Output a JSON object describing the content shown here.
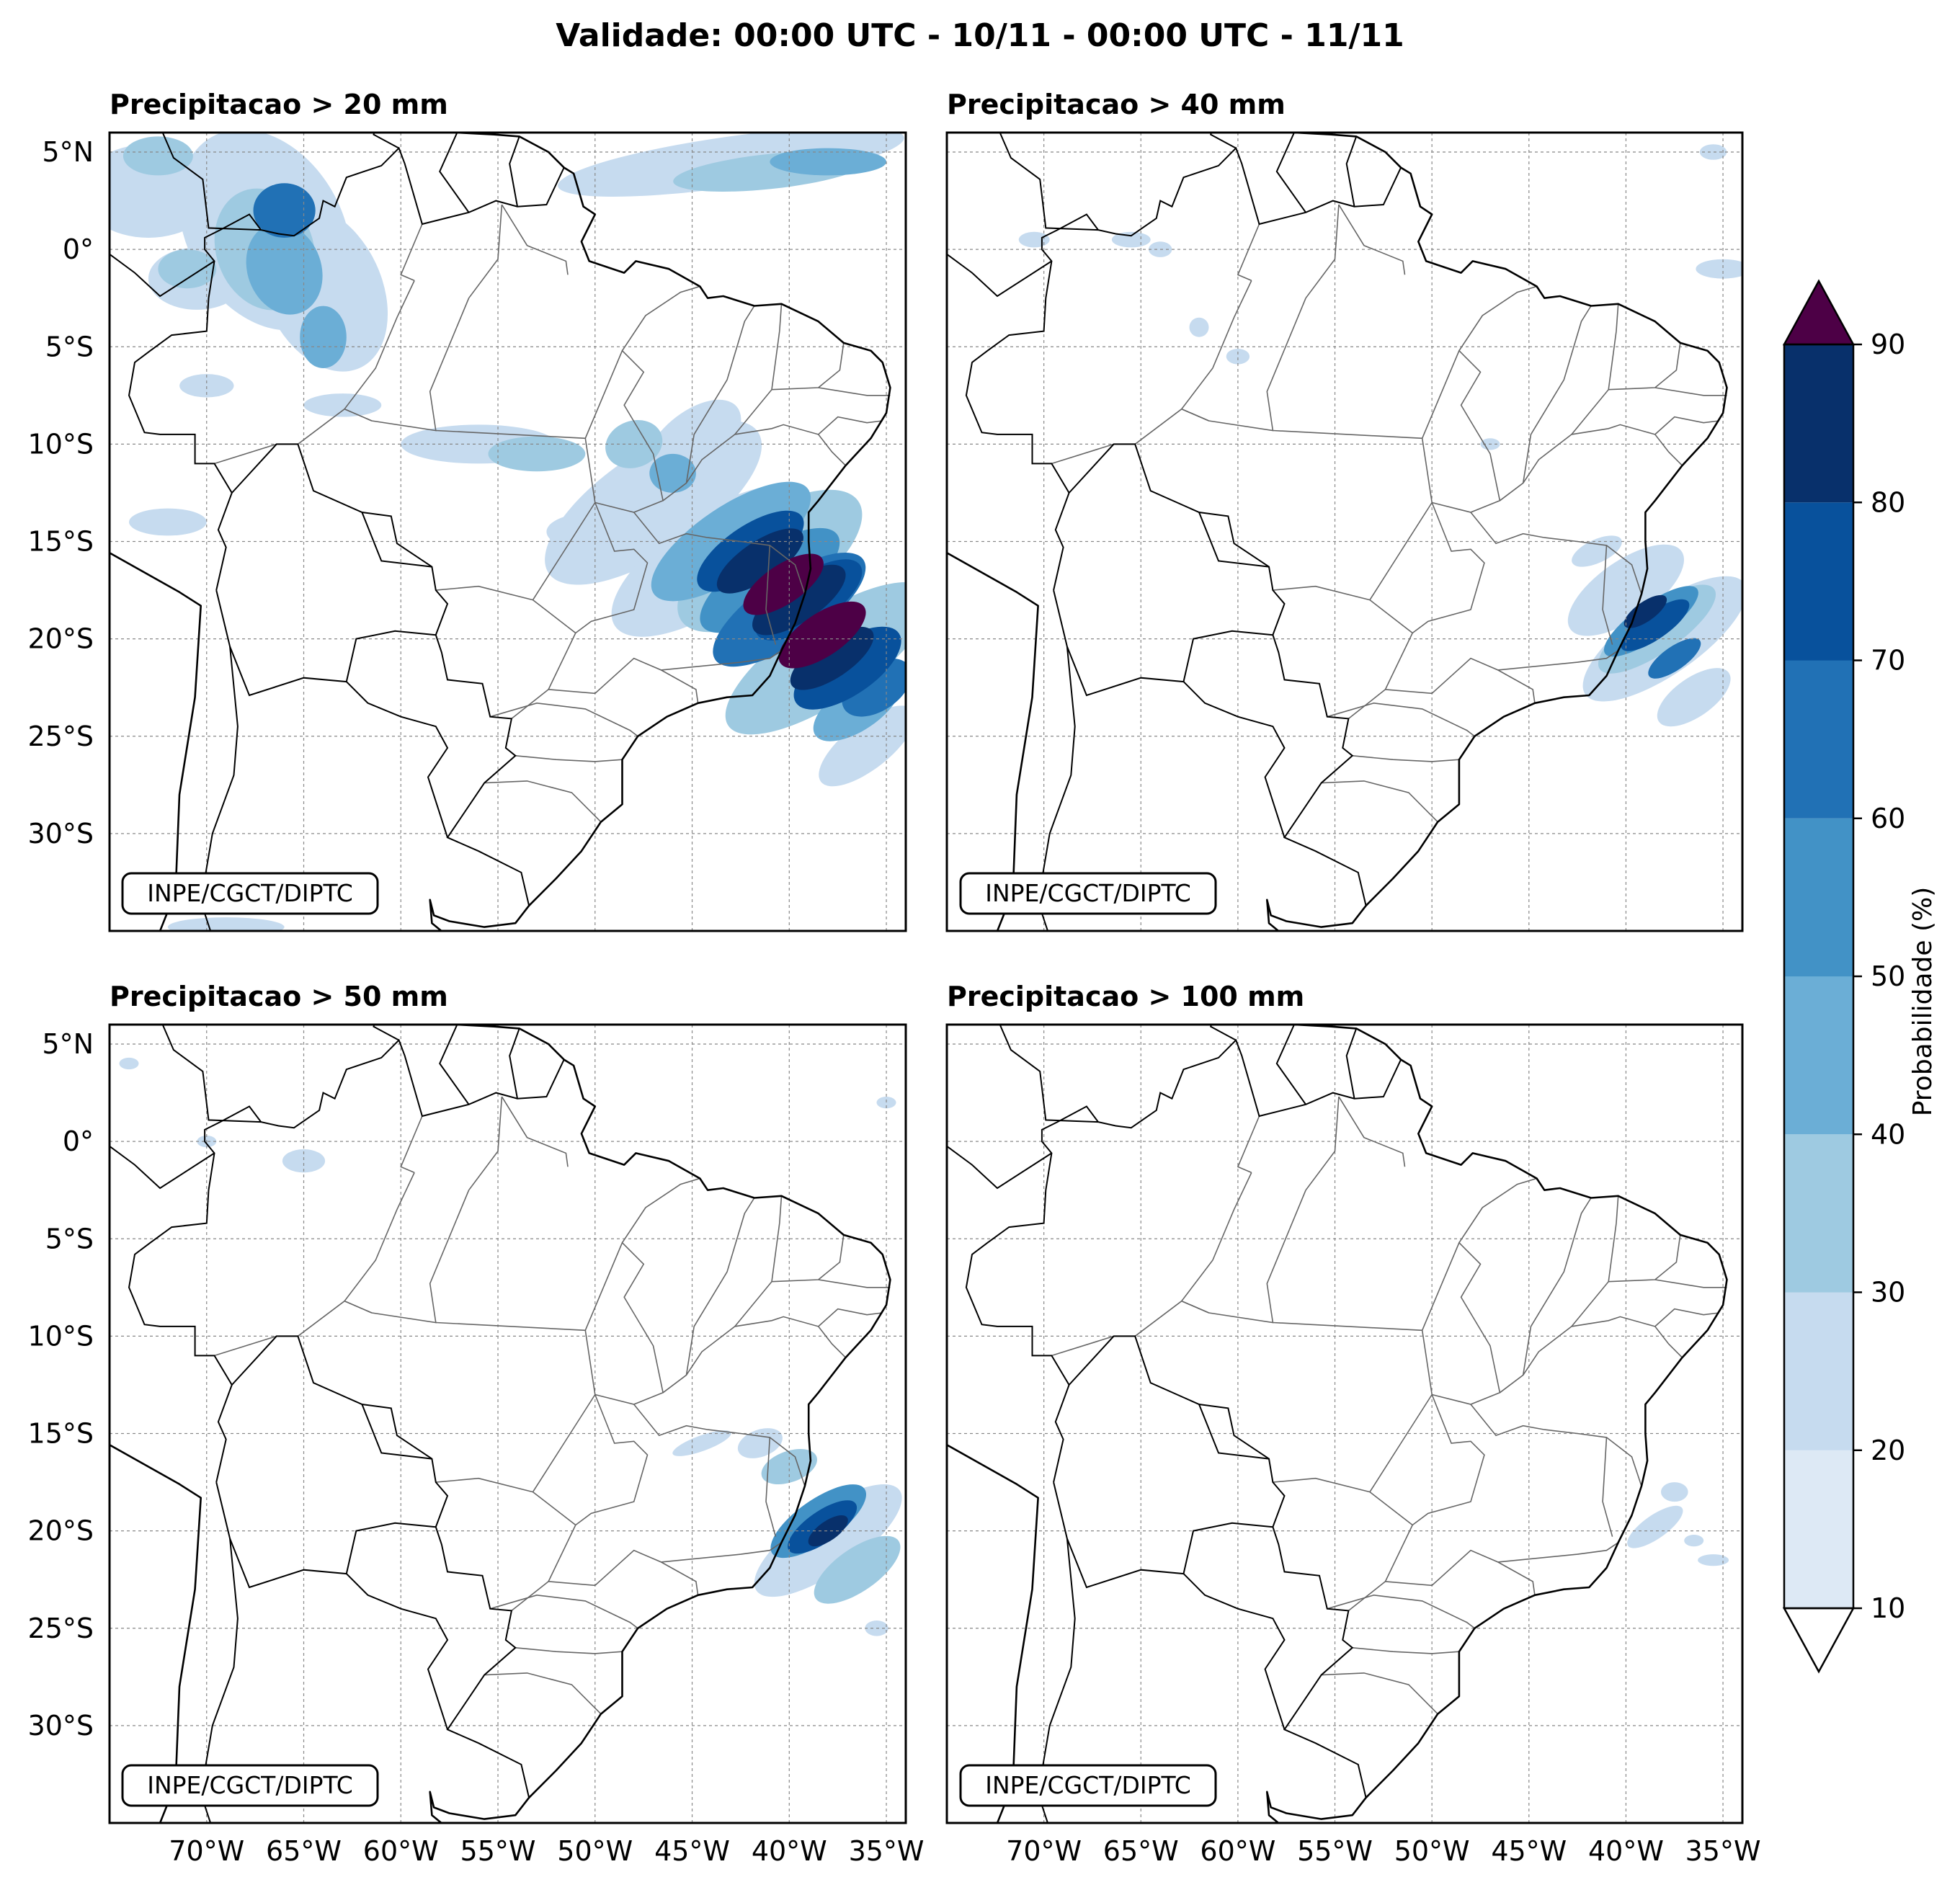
{
  "figure": {
    "title": "Validade: 00:00 UTC - 10/11 - 00:00 UTC - 11/11"
  },
  "panels": [
    {
      "title": "Precipitacao > 20 mm",
      "credit": "INPE/CGCT/DIPTC",
      "threshold_mm": 20
    },
    {
      "title": "Precipitacao > 40 mm",
      "credit": "INPE/CGCT/DIPTC",
      "threshold_mm": 40
    },
    {
      "title": "Precipitacao > 50 mm",
      "credit": "INPE/CGCT/DIPTC",
      "threshold_mm": 50
    },
    {
      "title": "Precipitacao > 100 mm",
      "credit": "INPE/CGCT/DIPTC",
      "threshold_mm": 100
    }
  ],
  "map": {
    "lon_range": [
      -75,
      -34
    ],
    "lat_range": [
      -35,
      6
    ],
    "lon_ticks": [
      -70,
      -65,
      -60,
      -55,
      -50,
      -45,
      -40,
      -35
    ],
    "lat_ticks": [
      5,
      0,
      -5,
      -10,
      -15,
      -20,
      -25,
      -30
    ],
    "lon_tick_labels": [
      "70°W",
      "65°W",
      "60°W",
      "55°W",
      "50°W",
      "45°W",
      "40°W",
      "35°W"
    ],
    "lat_tick_labels": [
      "5°N",
      "0°",
      "5°S",
      "10°S",
      "15°S",
      "20°S",
      "25°S",
      "30°S"
    ]
  },
  "colorbar": {
    "label": "Probabilidade (%)",
    "ticks": [
      10,
      20,
      30,
      40,
      50,
      60,
      70,
      80,
      90
    ],
    "tick_labels": [
      "10",
      "20",
      "30",
      "40",
      "50",
      "60",
      "70",
      "80",
      "90"
    ],
    "colors": [
      "#dde9f5",
      "#c6dbef",
      "#9ecae1",
      "#6baed6",
      "#4292c6",
      "#2171b5",
      "#08519c",
      "#08306b"
    ],
    "over_color": "#4d0046",
    "under_color": "#ffffff"
  },
  "colors": {
    "gridline": "#888888",
    "coastline": "#000000",
    "state_border": "#666666",
    "extreme": "#4d0046"
  }
}
